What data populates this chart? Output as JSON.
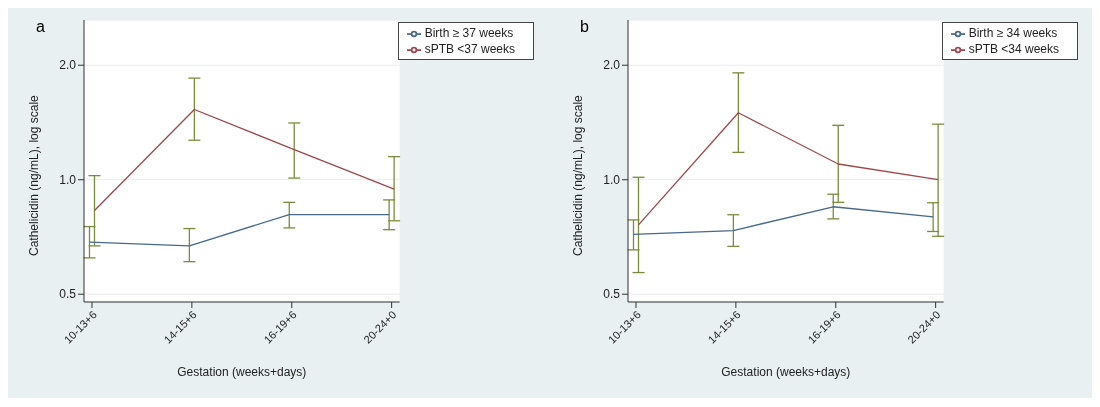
{
  "chart_data": [
    {
      "type": "line",
      "title": "a",
      "xlabel": "Gestation (weeks+days)",
      "ylabel": "Cathelicidin (ng/mL), log scale",
      "categories": [
        "10-13+6",
        "14-15+6",
        "16-19+6",
        "20-24+0"
      ],
      "log": true,
      "ylim": [
        0.477,
        2.63
      ],
      "yticks": [
        {
          "value": 0.5,
          "label": "0.5"
        },
        {
          "value": 1,
          "label": "1.0"
        },
        {
          "value": 2,
          "label": "2.0"
        }
      ],
      "grid": "y",
      "legend": "top right",
      "series": [
        {
          "name": "sPTB <37 weeks",
          "color": "#a0474d",
          "values": [
            0.83,
            1.53,
            1.2,
            0.945
          ],
          "errors": [
            [
              0.67,
              1.025
            ],
            [
              1.27,
              1.85
            ],
            [
              1.01,
              1.41
            ],
            [
              0.78,
              1.15
            ]
          ]
        },
        {
          "name": "Birth ≥ 37 weeks",
          "color": "#46698c",
          "values": [
            0.685,
            0.67,
            0.81,
            0.81
          ],
          "errors": [
            [
              0.623,
              0.753
            ],
            [
              0.609,
              0.744
            ],
            [
              0.747,
              0.872
            ],
            [
              0.739,
              0.885
            ]
          ]
        }
      ]
    },
    {
      "type": "line",
      "title": "b",
      "xlabel": "Gestation (weeks+days)",
      "ylabel": "Cathelicidin (ng/mL), log scale",
      "categories": [
        "10-13+6",
        "14-15+6",
        "16-19+6",
        "20-24+0"
      ],
      "log": true,
      "ylim": [
        0.477,
        2.63
      ],
      "yticks": [
        {
          "value": 0.5,
          "label": "0.5"
        },
        {
          "value": 1,
          "label": "1.0"
        },
        {
          "value": 2,
          "label": "2.0"
        }
      ],
      "grid": "y",
      "legend": "top right",
      "series": [
        {
          "name": "sPTB <34 weeks",
          "color": "#a0474d",
          "values": [
            0.761,
            1.5,
            1.1,
            1.0
          ],
          "errors": [
            [
              0.57,
              1.015
            ],
            [
              1.18,
              1.91
            ],
            [
              0.872,
              1.39
            ],
            [
              0.71,
              1.4
            ]
          ]
        },
        {
          "name": "Birth ≥ 34 weeks",
          "color": "#46698c",
          "values": [
            0.718,
            0.735,
            0.849,
            0.799
          ],
          "errors": [
            [
              0.654,
              0.784
            ],
            [
              0.668,
              0.809
            ],
            [
              0.789,
              0.916
            ],
            [
              0.731,
              0.87
            ]
          ]
        }
      ]
    }
  ]
}
